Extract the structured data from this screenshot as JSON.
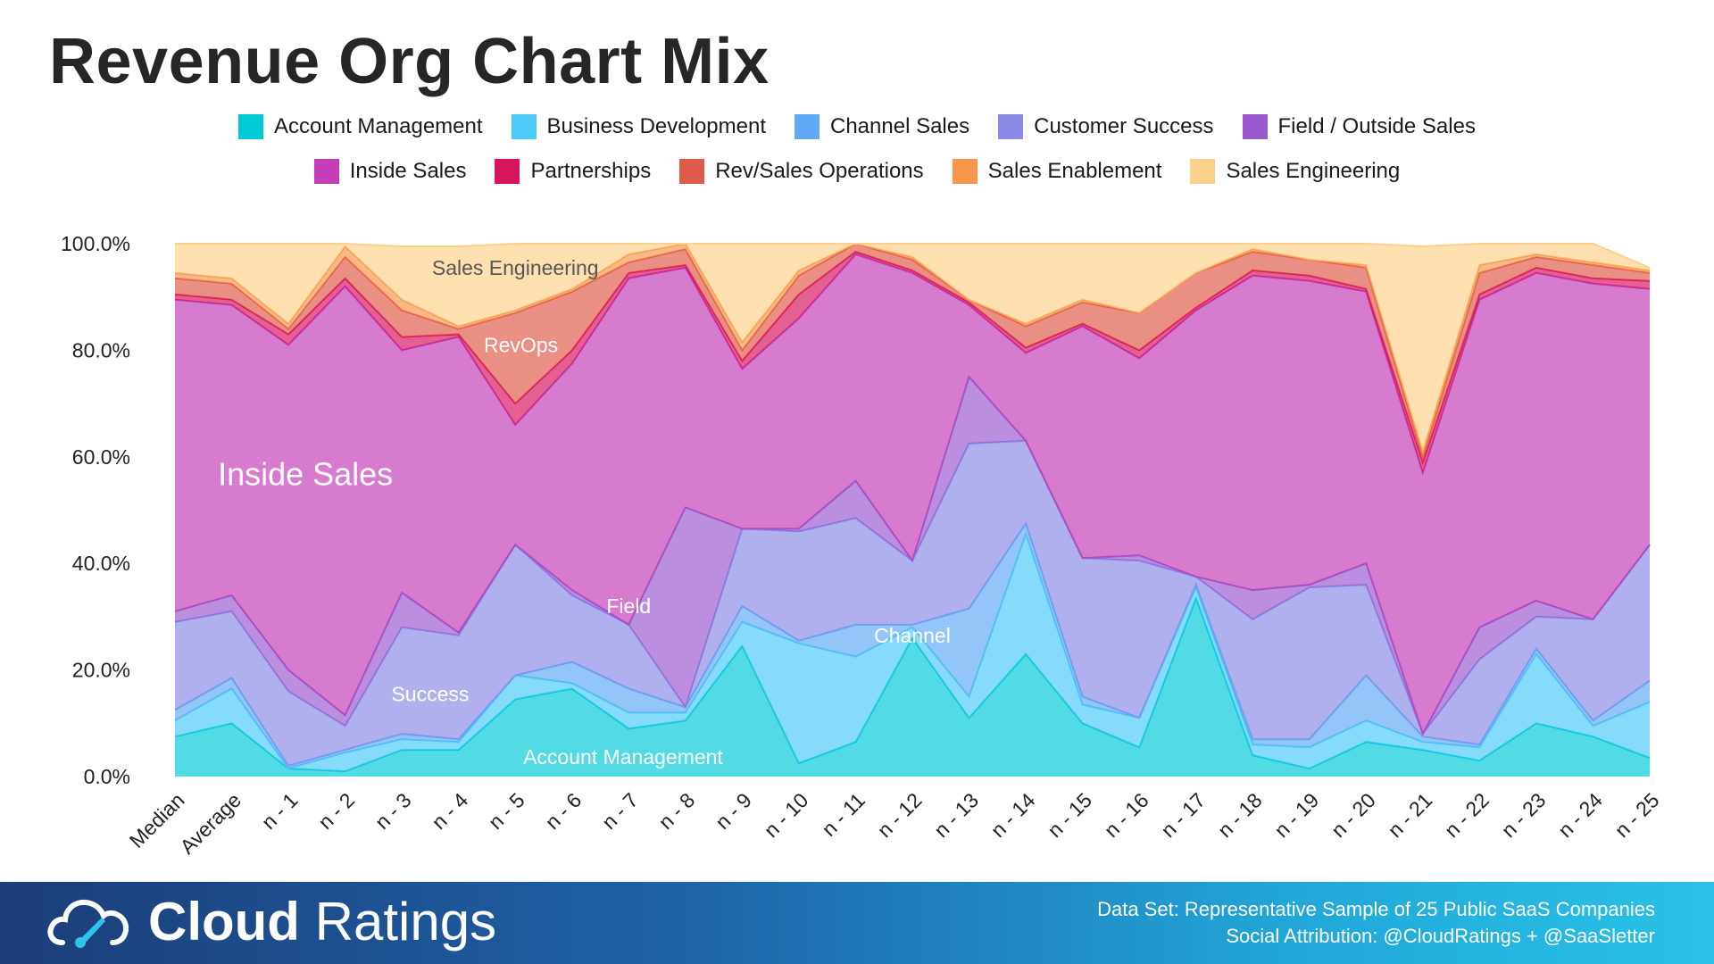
{
  "title": "Revenue Org Chart Mix",
  "legend": [
    {
      "label": "Account Management",
      "color": "#00c9d8"
    },
    {
      "label": "Business Development",
      "color": "#4dcaf7"
    },
    {
      "label": "Channel Sales",
      "color": "#62a9f5"
    },
    {
      "label": "Customer Success",
      "color": "#8a8ae6"
    },
    {
      "label": "Field / Outside Sales",
      "color": "#9b59d0"
    },
    {
      "label": "Inside Sales",
      "color": "#c23db6"
    },
    {
      "label": "Partnerships",
      "color": "#d8145f"
    },
    {
      "label": "Rev/Sales Operations",
      "color": "#e05a4a"
    },
    {
      "label": "Sales Enablement",
      "color": "#f7974e"
    },
    {
      "label": "Sales Engineering",
      "color": "#fdd08a"
    }
  ],
  "chart_data": {
    "type": "area",
    "stacked": true,
    "categories": [
      "Median",
      "Average",
      "n - 1",
      "n - 2",
      "n - 3",
      "n - 4",
      "n - 5",
      "n - 6",
      "n - 7",
      "n - 8",
      "n - 9",
      "n - 10",
      "n - 11",
      "n - 12",
      "n - 13",
      "n - 14",
      "n - 15",
      "n - 16",
      "n - 17",
      "n - 18",
      "n - 19",
      "n - 20",
      "n - 21",
      "n - 22",
      "n - 23",
      "n - 24",
      "n - 25"
    ],
    "ylim": [
      0,
      100
    ],
    "yticks": [
      "0.0%",
      "20.0%",
      "40.0%",
      "60.0%",
      "80.0%",
      "100.0%"
    ],
    "series": [
      {
        "name": "Account Management",
        "values": [
          7.5,
          10,
          1.5,
          1,
          5,
          5,
          14.5,
          16.5,
          9,
          10.5,
          24.5,
          2.5,
          6.5,
          26,
          11,
          23,
          10,
          5.5,
          33.5,
          4,
          1.5,
          6.5,
          5,
          3,
          10,
          7.5,
          3.5
        ]
      },
      {
        "name": "Business Development",
        "values": [
          3,
          6.5,
          0,
          3.5,
          2,
          1.5,
          4.5,
          1,
          3,
          1.5,
          4.5,
          22.5,
          16,
          2,
          4,
          22.5,
          3.5,
          5.5,
          2,
          2,
          4,
          4,
          1.5,
          2.5,
          13,
          2,
          10.5
        ]
      },
      {
        "name": "Channel Sales",
        "values": [
          2,
          2,
          0.5,
          0.5,
          1,
          0.5,
          0,
          4,
          4.5,
          1,
          3,
          0.5,
          6,
          0.5,
          16.5,
          2,
          1.5,
          0,
          0.5,
          1,
          1.5,
          8.5,
          1,
          0.5,
          1,
          1,
          4
        ]
      },
      {
        "name": "Customer Success",
        "values": [
          16.5,
          12.5,
          14,
          4.5,
          20,
          19.5,
          24.5,
          12.5,
          12,
          0,
          14.5,
          20.5,
          20,
          12,
          31,
          15.5,
          26,
          29.5,
          1.5,
          22.5,
          28.5,
          17,
          0.5,
          16,
          6,
          19,
          25.5
        ]
      },
      {
        "name": "Field / Outside Sales",
        "values": [
          2,
          3,
          4,
          2,
          6.5,
          0.5,
          0,
          1,
          0,
          37.5,
          0,
          0.5,
          7,
          0,
          12.5,
          0,
          0,
          1,
          0,
          5.5,
          0.5,
          4,
          0,
          6,
          3,
          0,
          0
        ]
      },
      {
        "name": "Inside Sales",
        "values": [
          58.5,
          54.5,
          61,
          80.5,
          45.5,
          55.5,
          22.5,
          42.5,
          65,
          45,
          30,
          39.5,
          42.5,
          54,
          13.5,
          16.5,
          43.5,
          37,
          50,
          59,
          57,
          51,
          49,
          61.5,
          61.5,
          63,
          48
        ]
      },
      {
        "name": "Partnerships",
        "values": [
          1,
          1,
          2,
          1.5,
          2.5,
          0.5,
          4,
          2.5,
          1,
          0.5,
          1.5,
          4.5,
          0.5,
          0.5,
          0.5,
          1,
          0.5,
          1.5,
          0.5,
          1,
          1,
          0.5,
          2,
          1,
          1,
          1,
          1.5
        ]
      },
      {
        "name": "Rev/Sales Operations",
        "values": [
          3,
          3,
          1,
          4,
          5,
          1,
          17,
          11,
          2,
          3,
          2,
          3.5,
          1.5,
          2,
          0.5,
          4,
          4,
          7,
          6.5,
          3.5,
          3,
          4,
          1,
          4,
          2,
          2.5,
          1.5
        ]
      },
      {
        "name": "Sales Enablement",
        "values": [
          1,
          1,
          1,
          2,
          2,
          0.5,
          0.5,
          0.5,
          1.5,
          1,
          1.5,
          1,
          0,
          0.5,
          0,
          0.5,
          0.5,
          0,
          0,
          0.5,
          0,
          0.5,
          1,
          1.5,
          0.5,
          0.5,
          0.5
        ]
      },
      {
        "name": "Sales Engineering",
        "values": [
          5.5,
          6.5,
          15,
          0.5,
          10,
          15,
          12.5,
          8.5,
          2,
          0,
          18.5,
          5,
          0,
          2.5,
          10.5,
          15,
          10.5,
          13,
          5.5,
          1,
          3,
          4,
          38.5,
          4,
          2,
          3.5,
          0.5
        ]
      }
    ],
    "annotations": [
      {
        "text": "Sales Engineering",
        "x": 6.0,
        "y": 95.5,
        "color": "#555555"
      },
      {
        "text": "RevOps",
        "x": 6.1,
        "y": 81.0,
        "color": "#ffffff"
      },
      {
        "text": "Inside Sales",
        "x": 2.3,
        "y": 56.0,
        "color": "#ffffff",
        "big": true
      },
      {
        "text": "Field",
        "x": 8.0,
        "y": 32.0,
        "color": "#ffffff"
      },
      {
        "text": "Channel",
        "x": 13.0,
        "y": 26.5,
        "color": "#ffffff"
      },
      {
        "text": "Success",
        "x": 4.5,
        "y": 15.5,
        "color": "#ffffff"
      },
      {
        "text": "Account Management",
        "x": 7.9,
        "y": 3.7,
        "color": "#ffffff"
      }
    ]
  },
  "footer": {
    "brand_bold": "Cloud",
    "brand_light": "Ratings",
    "line1": "Data Set: Representative Sample of 25 Public SaaS Companies",
    "line2": "Social Attribution: @CloudRatings + @SaaSletter"
  }
}
